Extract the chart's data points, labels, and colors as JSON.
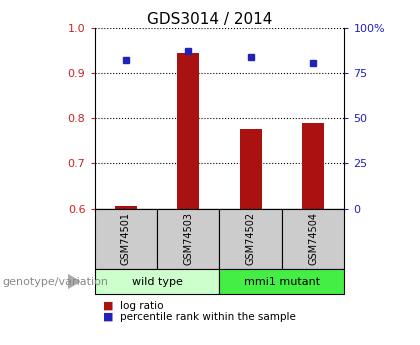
{
  "title": "GDS3014 / 2014",
  "samples": [
    "GSM74501",
    "GSM74503",
    "GSM74502",
    "GSM74504"
  ],
  "log_ratio": [
    0.605,
    0.945,
    0.775,
    0.79
  ],
  "percentile_rank": [
    0.928,
    0.948,
    0.935,
    0.922
  ],
  "groups": [
    {
      "label": "wild type",
      "samples": [
        0,
        1
      ],
      "color": "#b3ffb3"
    },
    {
      "label": "mmi1 mutant",
      "samples": [
        2,
        3
      ],
      "color": "#44ee44"
    }
  ],
  "ylim": [
    0.6,
    1.0
  ],
  "yticks_left": [
    0.6,
    0.7,
    0.8,
    0.9,
    1.0
  ],
  "yticks_right_labels": [
    "0",
    "25",
    "50",
    "75",
    "100%"
  ],
  "yticks_right_pos": [
    0.6,
    0.7,
    0.8,
    0.9,
    1.0
  ],
  "bar_color": "#aa1111",
  "dot_color": "#2222bb",
  "left_tick_color": "#cc2222",
  "right_tick_color": "#2222bb",
  "grid_color": "#000000",
  "legend_label_ratio": "log ratio",
  "legend_label_percentile": "percentile rank within the sample",
  "genotype_label": "genotype/variation",
  "sample_box_color": "#cccccc",
  "group_box_color_1": "#ccffcc",
  "group_box_color_2": "#44ee44",
  "bar_width": 0.35
}
